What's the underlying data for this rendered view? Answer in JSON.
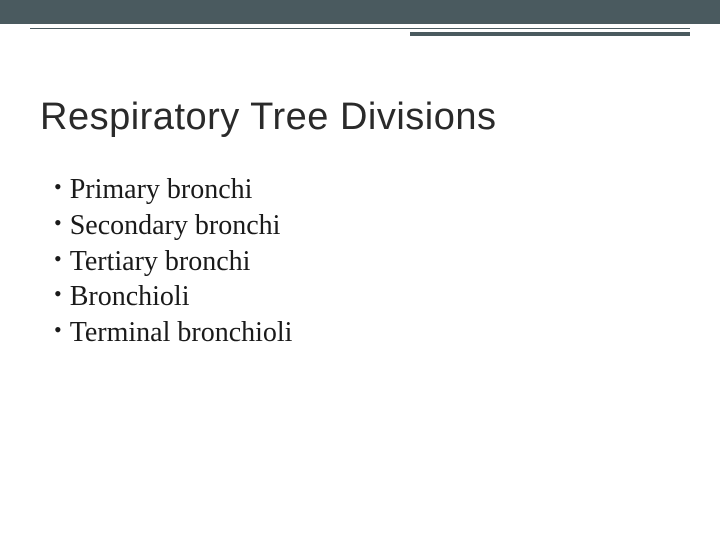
{
  "colors": {
    "top_bar": "#4a5a5f",
    "rule": "#4a5a5f",
    "title_text": "#2a2a2a",
    "body_text": "#1a1a1a",
    "background": "#ffffff"
  },
  "title": "Respiratory Tree Divisions",
  "title_fontsize": 38,
  "title_font_family": "Segoe UI, Trebuchet MS, sans-serif",
  "bullet_fontsize": 28,
  "bullet_font_family": "Georgia, Times New Roman, serif",
  "bullets": [
    "Primary bronchi",
    "Secondary bronchi",
    "Tertiary bronchi",
    "Bronchioli",
    "Terminal bronchioli"
  ]
}
